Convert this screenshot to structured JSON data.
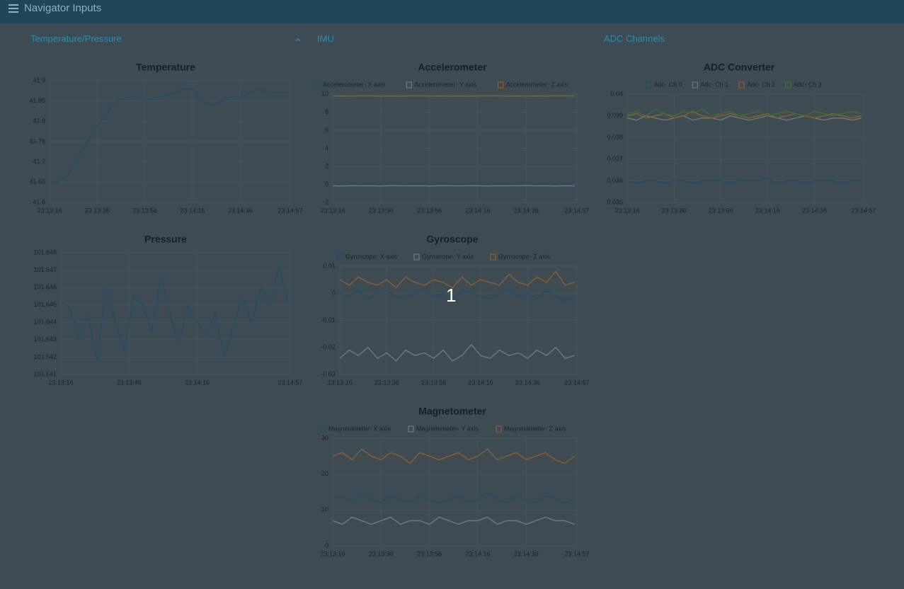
{
  "header": {
    "title": "Navigator Inputs"
  },
  "sections": [
    "Temperature/Pressure",
    "IMU",
    "ADC Channels"
  ],
  "badge": "1",
  "chart_data": [
    {
      "type": "line",
      "title": "Temperature",
      "grid": true,
      "color": "#1e5068",
      "x": [
        "23:13:16",
        "23:13:20",
        "23:13:24",
        "23:13:28",
        "23:13:32",
        "23:13:36",
        "23:13:40",
        "23:13:44",
        "23:13:48",
        "23:13:52",
        "23:13:56",
        "23:14:00",
        "23:14:04",
        "23:14:08",
        "23:14:12",
        "23:14:16",
        "23:14:20",
        "23:14:24",
        "23:14:28",
        "23:14:32",
        "23:14:36",
        "23:14:40",
        "23:14:44",
        "23:14:48",
        "23:14:52",
        "23:14:56"
      ],
      "values": [
        41.65,
        41.65,
        41.67,
        41.71,
        41.75,
        41.79,
        41.82,
        41.85,
        41.86,
        41.86,
        41.85,
        41.86,
        41.86,
        41.87,
        41.88,
        41.88,
        41.85,
        41.84,
        41.85,
        41.86,
        41.86,
        41.87,
        41.88,
        41.87,
        41.87,
        41.87
      ],
      "xlim": [
        "23:13:16",
        "23:14:57"
      ],
      "xticks": [
        "23:13:16",
        "23:13:36",
        "23:13:56",
        "23:14:16",
        "23:14:36",
        "23:14:57"
      ],
      "ylim": [
        41.6,
        41.9
      ],
      "yticks": [
        41.6,
        41.65,
        41.7,
        41.75,
        41.8,
        41.85,
        41.9
      ]
    },
    {
      "type": "line",
      "title": "Pressure",
      "grid": true,
      "color": "#1e5068",
      "x": [
        "23:13:16",
        "23:13:20",
        "23:13:24",
        "23:13:28",
        "23:13:32",
        "23:13:36",
        "23:13:40",
        "23:13:44",
        "23:13:48",
        "23:13:52",
        "23:13:56",
        "23:14:00",
        "23:14:04",
        "23:14:08",
        "23:14:12",
        "23:14:16",
        "23:14:20",
        "23:14:24",
        "23:14:28",
        "23:14:32",
        "23:14:36",
        "23:14:40",
        "23:14:44",
        "23:14:48",
        "23:14:52",
        "23:14:56"
      ],
      "values": [
        101.6452,
        101.6448,
        101.643,
        101.6445,
        101.6418,
        101.646,
        101.644,
        101.6425,
        101.6455,
        101.645,
        101.6435,
        101.6465,
        101.6445,
        101.6428,
        101.645,
        101.644,
        101.6432,
        101.6445,
        101.642,
        101.6438,
        101.6455,
        101.644,
        101.646,
        101.645,
        101.6472,
        101.6452
      ],
      "xlim": [
        "23:13:16",
        "23:14:57"
      ],
      "xticks": [
        "23:13:16",
        "23:13:46",
        "23:14:16",
        "23:14:57"
      ],
      "ylim": [
        101.641,
        101.648
      ],
      "yticks": [
        101.641,
        101.642,
        101.643,
        101.644,
        101.645,
        101.646,
        101.647,
        101.648
      ]
    },
    {
      "type": "line",
      "title": "Accelerometer",
      "grid": true,
      "legend": "top",
      "x": [
        "23:13:16",
        "23:13:20",
        "23:13:24",
        "23:13:28",
        "23:13:32",
        "23:13:36",
        "23:13:40",
        "23:13:44",
        "23:13:48",
        "23:13:52",
        "23:13:56",
        "23:14:00",
        "23:14:04",
        "23:14:08",
        "23:14:12",
        "23:14:16",
        "23:14:20",
        "23:14:24",
        "23:14:28",
        "23:14:32",
        "23:14:36",
        "23:14:40",
        "23:14:44",
        "23:14:48",
        "23:14:52",
        "23:14:56"
      ],
      "series": [
        {
          "name": "Accelerometer- X axis",
          "color": "#1e5068",
          "values": [
            0.05,
            0.04,
            0.06,
            0.05,
            0.03,
            0.05,
            0.06,
            0.04,
            0.05,
            0.05,
            0.04,
            0.06,
            0.05,
            0.04,
            0.05,
            0.06,
            0.05,
            0.04,
            0.05,
            0.05,
            0.06,
            0.04,
            0.05,
            0.05,
            0.04,
            0.05
          ]
        },
        {
          "name": "Accelerometer- Y axis",
          "color": "#6d777b",
          "values": [
            -0.15,
            -0.17,
            -0.14,
            -0.16,
            -0.15,
            -0.18,
            -0.14,
            -0.15,
            -0.16,
            -0.15,
            -0.17,
            -0.14,
            -0.15,
            -0.16,
            -0.15,
            -0.14,
            -0.17,
            -0.15,
            -0.16,
            -0.15,
            -0.14,
            -0.16,
            -0.15,
            -0.17,
            -0.15,
            -0.16
          ]
        },
        {
          "name": "Accelerometer- Z axis",
          "color": "#8b5e2e",
          "values": [
            9.78,
            9.8,
            9.79,
            9.81,
            9.8,
            9.78,
            9.8,
            9.79,
            9.8,
            9.81,
            9.79,
            9.8,
            9.78,
            9.8,
            9.79,
            9.8,
            9.81,
            9.8,
            9.79,
            9.8,
            9.78,
            9.8,
            9.79,
            9.81,
            9.8,
            9.79
          ]
        }
      ],
      "xlim": [
        "23:13:16",
        "23:14:57"
      ],
      "xticks": [
        "23:13:16",
        "23:13:36",
        "23:13:56",
        "23:14:16",
        "23:14:36",
        "23:14:57"
      ],
      "ylim": [
        -2,
        10
      ],
      "yticks": [
        -2,
        0,
        2,
        4,
        6,
        8,
        10
      ]
    },
    {
      "type": "line",
      "title": "Gyroscope",
      "grid": true,
      "legend": "top",
      "x": [
        "23:13:16",
        "23:13:20",
        "23:13:24",
        "23:13:28",
        "23:13:32",
        "23:13:36",
        "23:13:40",
        "23:13:44",
        "23:13:48",
        "23:13:52",
        "23:13:56",
        "23:14:00",
        "23:14:04",
        "23:14:08",
        "23:14:12",
        "23:14:16",
        "23:14:20",
        "23:14:24",
        "23:14:28",
        "23:14:32",
        "23:14:36",
        "23:14:40",
        "23:14:44",
        "23:14:48",
        "23:14:52",
        "23:14:56"
      ],
      "series": [
        {
          "name": "Gyroscope- X axis",
          "color": "#1e5068",
          "values": [
            0,
            -0.001,
            0.001,
            -0.002,
            0,
            0.001,
            -0.001,
            -0.002,
            0,
            0.001,
            -0.001,
            0,
            -0.002,
            0.001,
            0,
            -0.001,
            -0.002,
            0,
            0.001,
            -0.001,
            0,
            -0.002,
            0.001,
            -0.001,
            -0.003,
            -0.001
          ]
        },
        {
          "name": "Gyroscope- Y axis",
          "color": "#6d777b",
          "values": [
            -0.024,
            -0.021,
            -0.023,
            -0.02,
            -0.024,
            -0.022,
            -0.025,
            -0.021,
            -0.023,
            -0.022,
            -0.024,
            -0.021,
            -0.025,
            -0.023,
            -0.019,
            -0.023,
            -0.024,
            -0.021,
            -0.023,
            -0.022,
            -0.024,
            -0.021,
            -0.023,
            -0.02,
            -0.024,
            -0.023
          ]
        },
        {
          "name": "Gyroscope- Z axis",
          "color": "#8b5e2e",
          "values": [
            0.005,
            0.003,
            0.006,
            0.004,
            0.003,
            0.005,
            0.002,
            0.006,
            0.004,
            0.003,
            0.005,
            0.004,
            0.002,
            0.006,
            0.003,
            0.005,
            0.004,
            0.003,
            0.007,
            0.004,
            0.003,
            0.006,
            0.004,
            0.008,
            0.003,
            0.004
          ]
        }
      ],
      "xlim": [
        "23:13:16",
        "23:14:57"
      ],
      "xticks": [
        "23:13:16",
        "23:13:36",
        "23:13:56",
        "23:14:16",
        "23:14:36",
        "23:14:57"
      ],
      "ylim": [
        -0.03,
        0.01
      ],
      "yticks": [
        -0.03,
        -0.02,
        -0.01,
        0,
        0.01
      ]
    },
    {
      "type": "line",
      "title": "Magnetometer",
      "grid": true,
      "legend": "top",
      "x": [
        "23:13:16",
        "23:13:20",
        "23:13:24",
        "23:13:28",
        "23:13:32",
        "23:13:36",
        "23:13:40",
        "23:13:44",
        "23:13:48",
        "23:13:52",
        "23:13:56",
        "23:14:00",
        "23:14:04",
        "23:14:08",
        "23:14:12",
        "23:14:16",
        "23:14:20",
        "23:14:24",
        "23:14:28",
        "23:14:32",
        "23:14:36",
        "23:14:40",
        "23:14:44",
        "23:14:48",
        "23:14:52",
        "23:14:56"
      ],
      "series": [
        {
          "name": "Magnetometer- X axis",
          "color": "#1e5068",
          "values": [
            13,
            14,
            12,
            15,
            13,
            12,
            14,
            13,
            12,
            14,
            13,
            12,
            13,
            14,
            12,
            13,
            15,
            13,
            12,
            14,
            13,
            12,
            14,
            13,
            12,
            13
          ]
        },
        {
          "name": "Magnetometer- Y axis",
          "color": "#6d777b",
          "values": [
            7,
            6,
            8,
            7,
            6,
            7,
            8,
            6,
            7,
            7,
            6,
            8,
            7,
            6,
            7,
            7,
            8,
            6,
            7,
            7,
            6,
            7,
            8,
            7,
            7,
            6
          ]
        },
        {
          "name": "Magnetometer- Z axis",
          "color": "#8b5e2e",
          "values": [
            25,
            26,
            24,
            27,
            25,
            24,
            26,
            25,
            23,
            26,
            25,
            24,
            25,
            26,
            24,
            25,
            27,
            24,
            25,
            26,
            24,
            25,
            26,
            24,
            23,
            25
          ]
        }
      ],
      "xlim": [
        "23:13:16",
        "23:14:57"
      ],
      "xticks": [
        "23:13:16",
        "23:13:36",
        "23:13:56",
        "23:14:16",
        "23:14:36",
        "23:14:57"
      ],
      "ylim": [
        0,
        30
      ],
      "yticks": [
        0,
        10,
        20,
        30
      ]
    },
    {
      "type": "line",
      "title": "ADC Converter",
      "grid": true,
      "legend": "top",
      "x": [
        "23:13:16",
        "23:13:20",
        "23:13:24",
        "23:13:28",
        "23:13:32",
        "23:13:36",
        "23:13:40",
        "23:13:44",
        "23:13:48",
        "23:13:52",
        "23:13:56",
        "23:14:00",
        "23:14:04",
        "23:14:08",
        "23:14:12",
        "23:14:16",
        "23:14:20",
        "23:14:24",
        "23:14:28",
        "23:14:32",
        "23:14:36",
        "23:14:40",
        "23:14:44",
        "23:14:48",
        "23:14:52",
        "23:14:56"
      ],
      "series": [
        {
          "name": "Adc- Ch 0",
          "color": "#1e5068",
          "values": [
            0.036,
            0.0359,
            0.036,
            0.036,
            0.0359,
            0.036,
            0.036,
            0.0359,
            0.036,
            0.036,
            0.036,
            0.0359,
            0.036,
            0.036,
            0.036,
            0.0361,
            0.0359,
            0.036,
            0.036,
            0.0359,
            0.036,
            0.036,
            0.036,
            0.0359,
            0.036,
            0.036
          ]
        },
        {
          "name": "Adc- Ch 1",
          "color": "#6d777b",
          "values": [
            0.0389,
            0.0388,
            0.039,
            0.0389,
            0.0388,
            0.0389,
            0.039,
            0.0388,
            0.0389,
            0.0389,
            0.0388,
            0.039,
            0.0389,
            0.0388,
            0.0389,
            0.039,
            0.0389,
            0.0388,
            0.0389,
            0.039,
            0.0389,
            0.0388,
            0.0389,
            0.0389,
            0.0388,
            0.0389
          ]
        },
        {
          "name": "Adc- Ch 2",
          "color": "#8b5e2e",
          "values": [
            0.039,
            0.0391,
            0.0389,
            0.039,
            0.0391,
            0.0389,
            0.039,
            0.0392,
            0.039,
            0.0389,
            0.039,
            0.0391,
            0.039,
            0.0389,
            0.039,
            0.0391,
            0.0389,
            0.039,
            0.0391,
            0.039,
            0.0389,
            0.039,
            0.0391,
            0.039,
            0.0389,
            0.039
          ]
        },
        {
          "name": "Adc- Ch 3",
          "color": "#3e6f31",
          "values": [
            0.0391,
            0.0392,
            0.039,
            0.0393,
            0.0391,
            0.039,
            0.0392,
            0.0391,
            0.0393,
            0.039,
            0.0391,
            0.0392,
            0.039,
            0.0391,
            0.0392,
            0.039,
            0.0391,
            0.0392,
            0.0391,
            0.039,
            0.0392,
            0.0391,
            0.039,
            0.0391,
            0.0392,
            0.0391
          ]
        }
      ],
      "xlim": [
        "23:13:16",
        "23:14:57"
      ],
      "xticks": [
        "23:13:16",
        "23:13:36",
        "23:13:56",
        "23:14:16",
        "23:14:36",
        "23:14:57"
      ],
      "ylim": [
        0.035,
        0.04
      ],
      "yticks": [
        0.035,
        0.036,
        0.037,
        0.038,
        0.039,
        0.04
      ]
    }
  ]
}
